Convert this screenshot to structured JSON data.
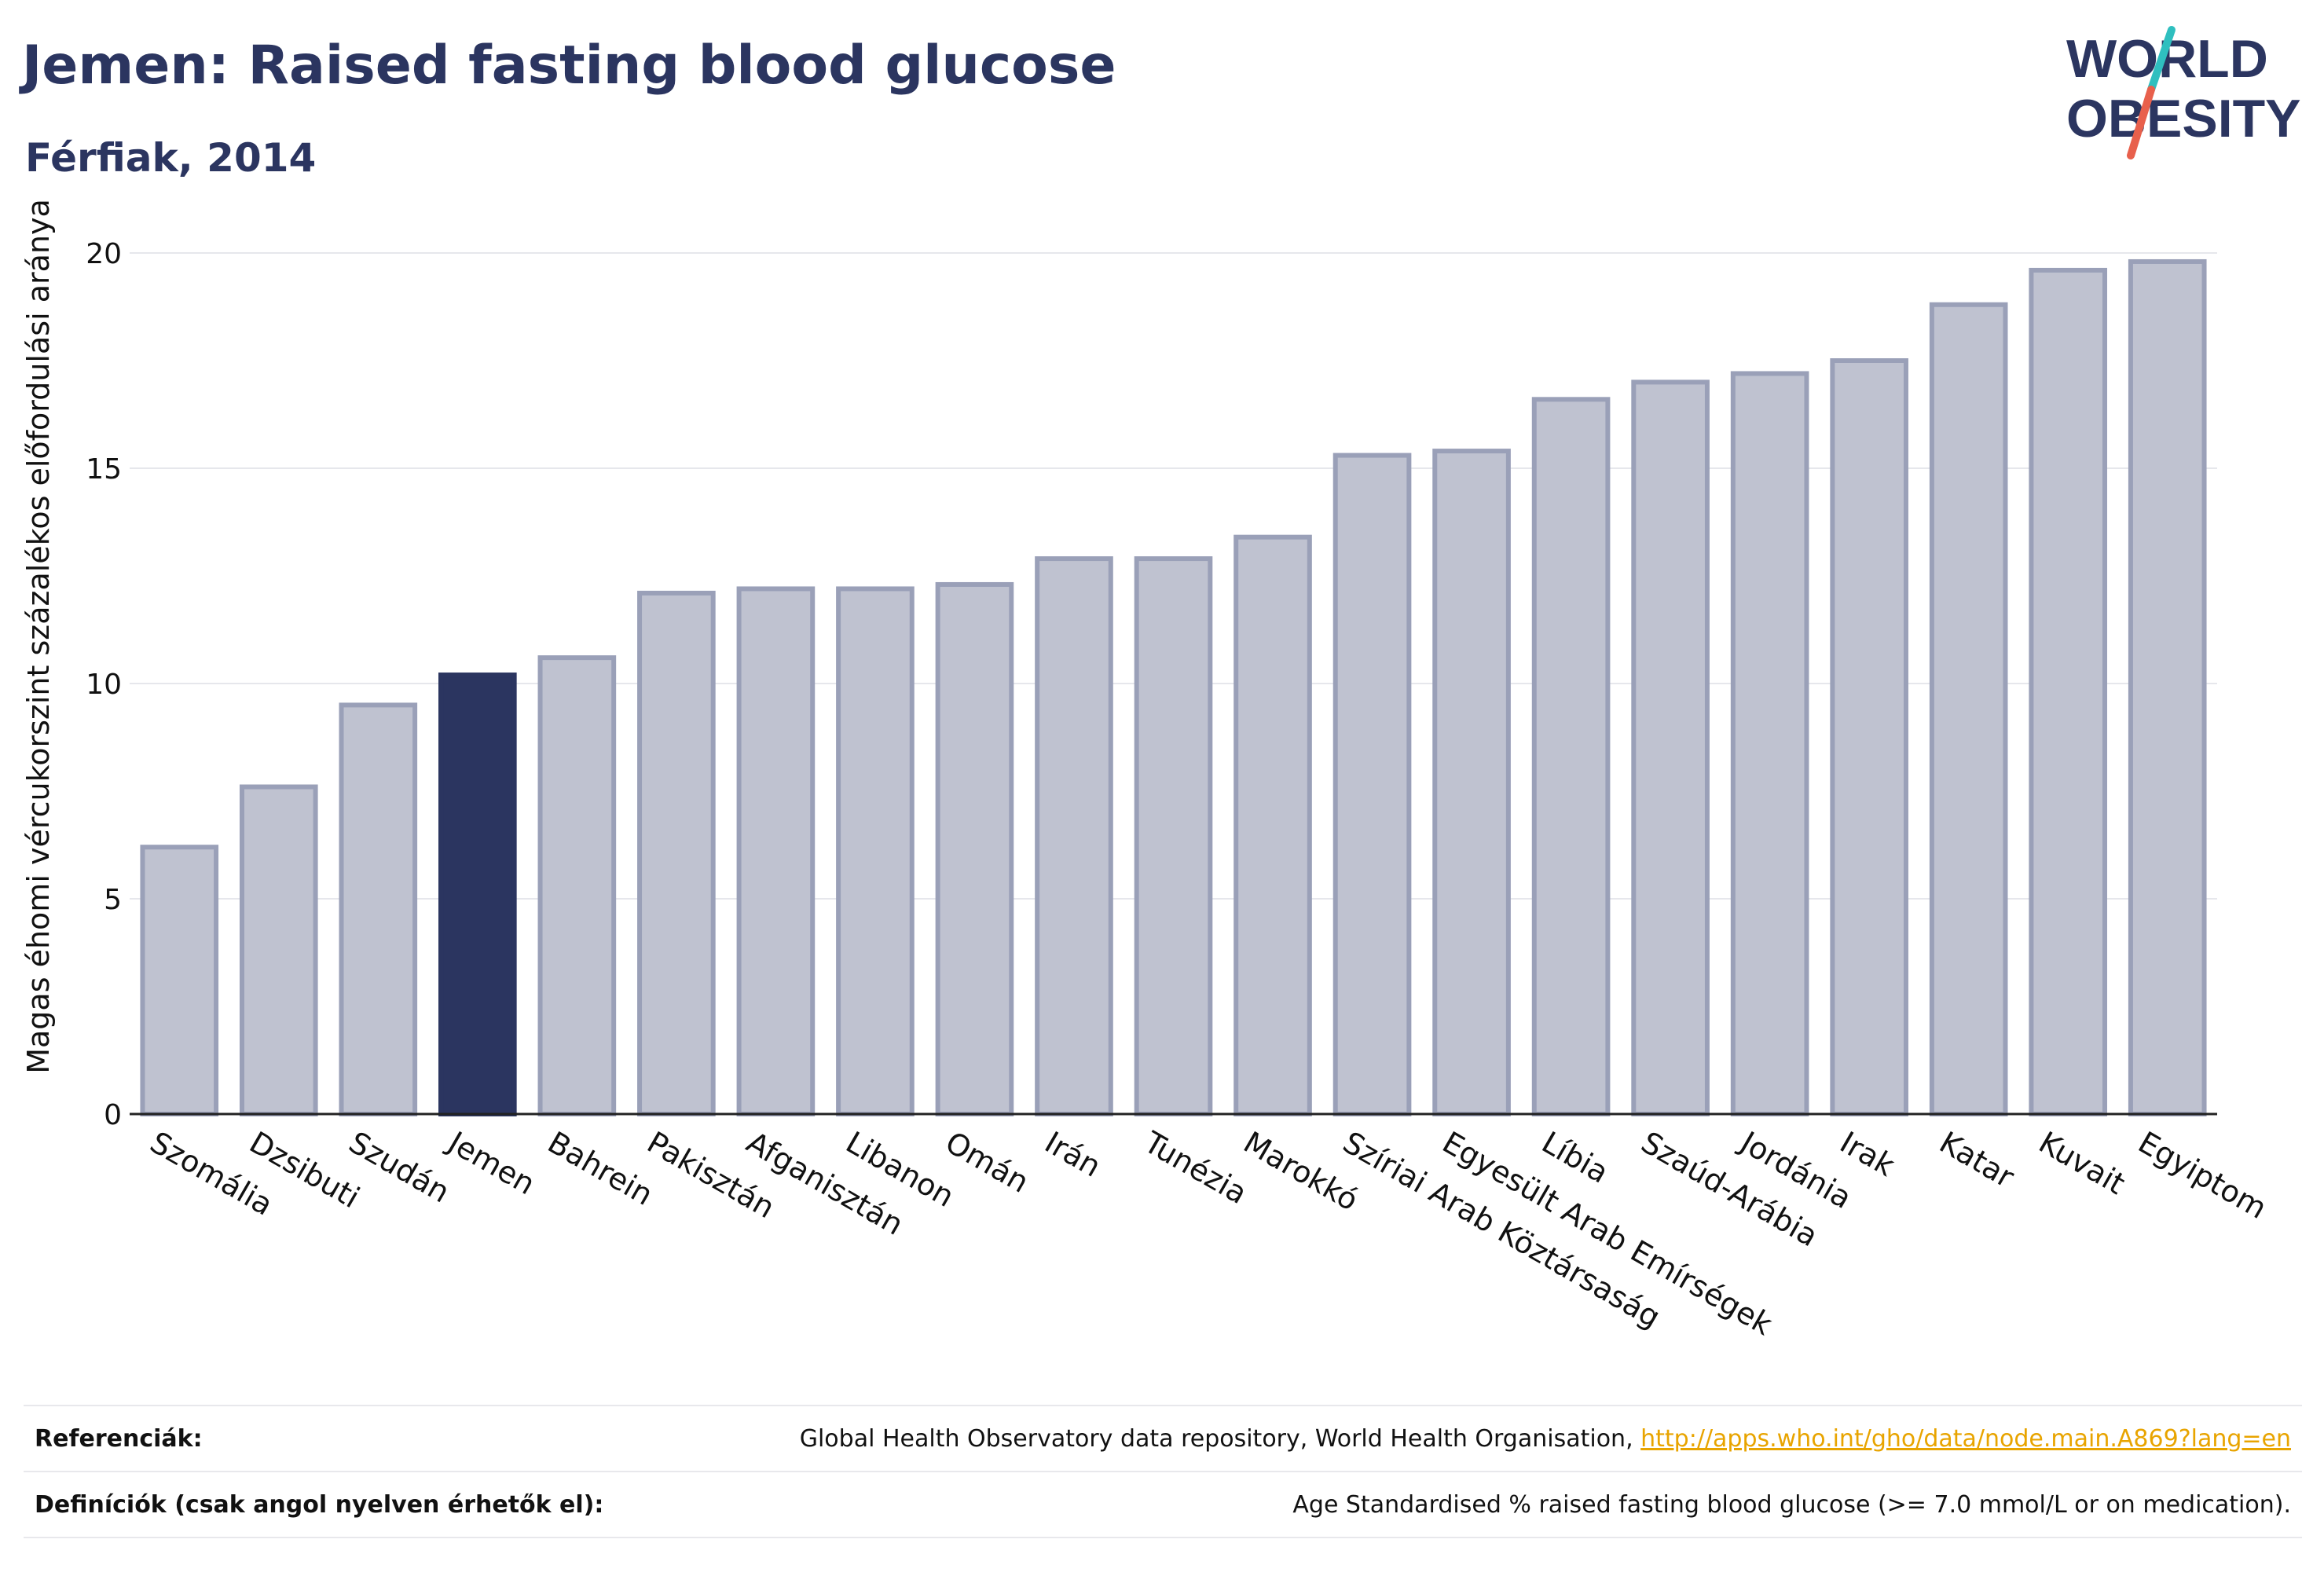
{
  "header": {
    "title": "Jemen: Raised fasting blood glucose",
    "subtitle": "Férfiak, 2014"
  },
  "logo": {
    "line1": "WORLD",
    "line2": "OBESITY",
    "accent_colors": [
      "#2fbfbf",
      "#e8604c"
    ]
  },
  "colors": {
    "highlight": "#2b3560",
    "bar_fill": "#bfc2d0",
    "bar_stroke": "#9aa0b8",
    "grid": "#e6e7ec",
    "axis": "#222222"
  },
  "chart_data": {
    "type": "bar",
    "title": "",
    "xlabel": "",
    "ylabel": "Magas éhomi vércukorszint százalékos előfordulási aránya",
    "ylim": [
      0,
      20
    ],
    "yticks": [
      0,
      5,
      10,
      15,
      20
    ],
    "grid": true,
    "highlight": "Jemen",
    "categories": [
      "Szomália",
      "Dzsibuti",
      "Szudán",
      "Jemen",
      "Bahrein",
      "Pakisztán",
      "Afganisztán",
      "Libanon",
      "Omán",
      "Irán",
      "Tunézia",
      "Marokkó",
      "Szíriai Arab Köztársaság",
      "Egyesült Arab Emírségek",
      "Líbia",
      "Szaúd-Arábia",
      "Jordánia",
      "Irak",
      "Katar",
      "Kuvait",
      "Egyiptom"
    ],
    "values": [
      6.2,
      7.6,
      9.5,
      10.2,
      10.6,
      12.1,
      12.2,
      12.2,
      12.3,
      12.9,
      12.9,
      13.4,
      15.3,
      15.4,
      16.6,
      17.0,
      17.2,
      17.5,
      18.8,
      19.6,
      19.8
    ]
  },
  "footer": {
    "references_label": "Referenciák:",
    "references_text": "Global Health Observatory data repository, World Health Organisation, ",
    "references_link": "http://apps.who.int/gho/data/node.main.A869?lang=en",
    "definitions_label": "Definíciók (csak angol nyelven érhetők el):",
    "definitions_text": "Age Standardised % raised fasting blood glucose (>= 7.0 mmol/L or on medication)."
  }
}
